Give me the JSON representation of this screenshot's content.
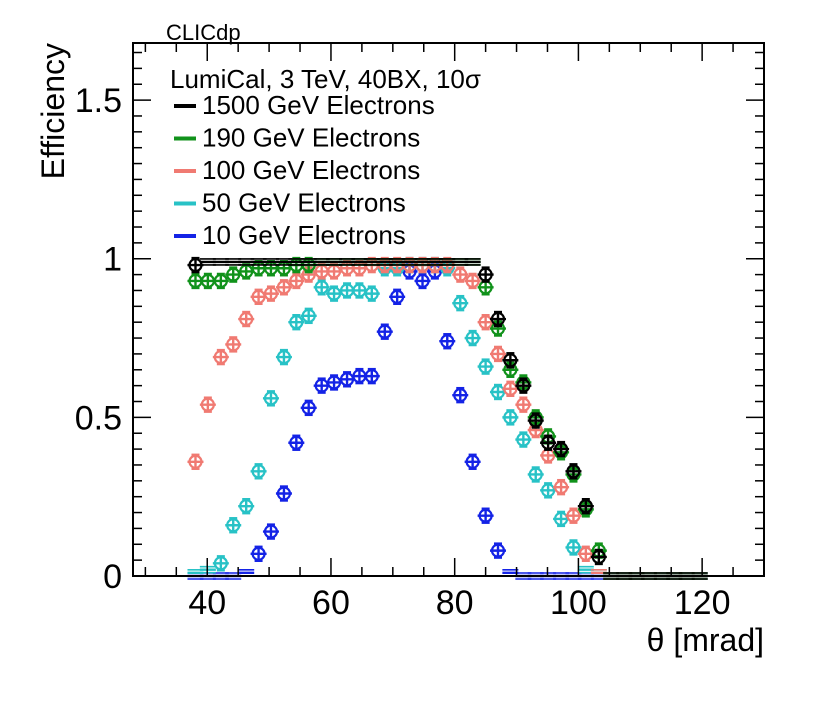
{
  "chart_data": {
    "type": "scatter",
    "label": "CLICdp",
    "title": "LumiCal, 3 TeV, 40BX, 10σ",
    "xlabel": "θ [mrad]",
    "ylabel": "Efficiency",
    "xlim": [
      28,
      130
    ],
    "ylim": [
      0,
      1.68
    ],
    "xticks": [
      40,
      60,
      80,
      100,
      120
    ],
    "yticks": [
      0,
      0.5,
      1,
      1.5
    ],
    "ytick_labels": [
      "0",
      "0.5",
      "1",
      "1.5"
    ],
    "grid": false,
    "legend_position": "top-left",
    "series": [
      {
        "name": "1500 GeV Electrons",
        "color": "#000000",
        "x": [
          38.1,
          40.1,
          42.2,
          44.2,
          46.3,
          48.3,
          50.3,
          52.4,
          54.4,
          56.4,
          58.5,
          60.5,
          62.6,
          64.6,
          66.6,
          68.7,
          70.7,
          72.7,
          74.8,
          76.8,
          78.8,
          80.9,
          82.9,
          85.0,
          87.0,
          89.0,
          91.1,
          93.1,
          95.1,
          97.2,
          99.2,
          101.2,
          103.3,
          105.3,
          107.4,
          109.4,
          111.4,
          113.5,
          115.5,
          117.5,
          119.6
        ],
        "y": [
          0.98,
          0.99,
          0.99,
          0.99,
          0.99,
          0.99,
          0.99,
          0.99,
          0.99,
          0.99,
          0.99,
          0.99,
          0.99,
          0.99,
          0.99,
          0.99,
          0.99,
          0.99,
          0.99,
          0.99,
          0.99,
          0.99,
          0.99,
          0.95,
          0.81,
          0.68,
          0.6,
          0.49,
          0.42,
          0.4,
          0.33,
          0.22,
          0.06,
          0.0,
          0.0,
          0.0,
          0.0,
          0.0,
          0.0,
          0.0,
          0.0
        ]
      },
      {
        "name": "190 GeV Electrons",
        "color": "#11921b",
        "x": [
          38.1,
          40.1,
          42.2,
          44.2,
          46.3,
          48.3,
          50.3,
          52.4,
          54.4,
          56.4,
          58.5,
          60.5,
          62.6,
          64.6,
          66.6,
          68.7,
          70.7,
          72.7,
          74.8,
          76.8,
          78.8,
          80.9,
          82.9,
          85.0,
          87.0,
          89.0,
          91.1,
          93.1,
          95.1,
          97.2,
          99.2,
          101.2,
          103.3,
          105.3,
          107.4,
          109.4,
          111.4,
          113.5,
          115.5,
          117.5,
          119.6
        ],
        "y": [
          0.93,
          0.93,
          0.93,
          0.95,
          0.96,
          0.97,
          0.97,
          0.97,
          0.98,
          0.98,
          0.99,
          0.99,
          0.99,
          0.99,
          0.99,
          0.99,
          0.99,
          0.99,
          0.99,
          0.99,
          0.99,
          0.99,
          0.99,
          0.91,
          0.78,
          0.65,
          0.61,
          0.5,
          0.44,
          0.39,
          0.32,
          0.21,
          0.08,
          0.0,
          0.0,
          0.0,
          0.0,
          0.0,
          0.0,
          0.0,
          0.0
        ]
      },
      {
        "name": "100 GeV Electrons",
        "color": "#f07a72",
        "x": [
          38.1,
          40.1,
          42.2,
          44.2,
          46.3,
          48.3,
          50.3,
          52.4,
          54.4,
          56.4,
          58.5,
          60.5,
          62.6,
          64.6,
          66.6,
          68.7,
          70.7,
          72.7,
          74.8,
          76.8,
          78.8,
          80.9,
          82.9,
          85.0,
          87.0,
          89.0,
          91.1,
          93.1,
          95.1,
          97.2,
          99.2,
          101.2,
          103.3,
          105.3,
          107.4,
          109.4,
          111.4,
          113.5,
          115.5,
          117.5,
          119.6
        ],
        "y": [
          0.36,
          0.54,
          0.69,
          0.73,
          0.81,
          0.88,
          0.89,
          0.91,
          0.93,
          0.95,
          0.96,
          0.96,
          0.97,
          0.97,
          0.98,
          0.98,
          0.98,
          0.98,
          0.98,
          0.98,
          0.98,
          0.95,
          0.93,
          0.8,
          0.7,
          0.59,
          0.54,
          0.46,
          0.38,
          0.28,
          0.19,
          0.07,
          0.01,
          0.0,
          0.0,
          0.0,
          0.0,
          0.0,
          0.0,
          0.0,
          0.0
        ]
      },
      {
        "name": "50 GeV Electrons",
        "color": "#28c2c6",
        "x": [
          38.1,
          40.1,
          42.2,
          44.2,
          46.3,
          48.3,
          50.3,
          52.4,
          54.4,
          56.4,
          58.5,
          60.5,
          62.6,
          64.6,
          66.6,
          68.7,
          70.7,
          72.7,
          74.8,
          76.8,
          78.8,
          80.9,
          82.9,
          85.0,
          87.0,
          89.0,
          91.1,
          93.1,
          95.1,
          97.2,
          99.2,
          101.2,
          103.3,
          105.3,
          107.4,
          109.4,
          111.4,
          113.5,
          115.5,
          117.5,
          119.6
        ],
        "y": [
          0.01,
          0.02,
          0.04,
          0.16,
          0.22,
          0.33,
          0.56,
          0.69,
          0.8,
          0.82,
          0.91,
          0.89,
          0.9,
          0.9,
          0.89,
          0.97,
          0.97,
          0.98,
          0.98,
          0.98,
          0.97,
          0.86,
          0.75,
          0.66,
          0.58,
          0.5,
          0.43,
          0.32,
          0.27,
          0.18,
          0.09,
          0.02,
          0.01,
          0.0,
          0.0,
          0.0,
          0.0,
          0.0,
          0.0,
          0.0,
          0.0
        ]
      },
      {
        "name": "10 GeV Electrons",
        "color": "#1423e6",
        "x": [
          38.1,
          40.1,
          42.2,
          44.2,
          46.3,
          48.3,
          50.3,
          52.4,
          54.4,
          56.4,
          58.5,
          60.5,
          62.6,
          64.6,
          66.6,
          68.7,
          70.7,
          72.7,
          74.8,
          76.8,
          78.8,
          80.9,
          82.9,
          85.0,
          87.0,
          89.0,
          91.1,
          93.1,
          95.1,
          97.2,
          99.2,
          101.2,
          103.3,
          105.3,
          107.4,
          109.4,
          111.4,
          113.5,
          115.5,
          117.5,
          119.6
        ],
        "y": [
          0.0,
          0.0,
          0.0,
          0.0,
          0.01,
          0.07,
          0.14,
          0.26,
          0.42,
          0.53,
          0.6,
          0.61,
          0.62,
          0.63,
          0.63,
          0.77,
          0.88,
          0.96,
          0.93,
          0.96,
          0.74,
          0.57,
          0.36,
          0.19,
          0.08,
          0.01,
          0.0,
          0.0,
          0.0,
          0.0,
          0.0,
          0.0,
          0.0,
          0.0,
          0.0,
          0.0,
          0.0,
          0.0,
          0.0,
          0.0,
          0.0
        ]
      }
    ]
  }
}
